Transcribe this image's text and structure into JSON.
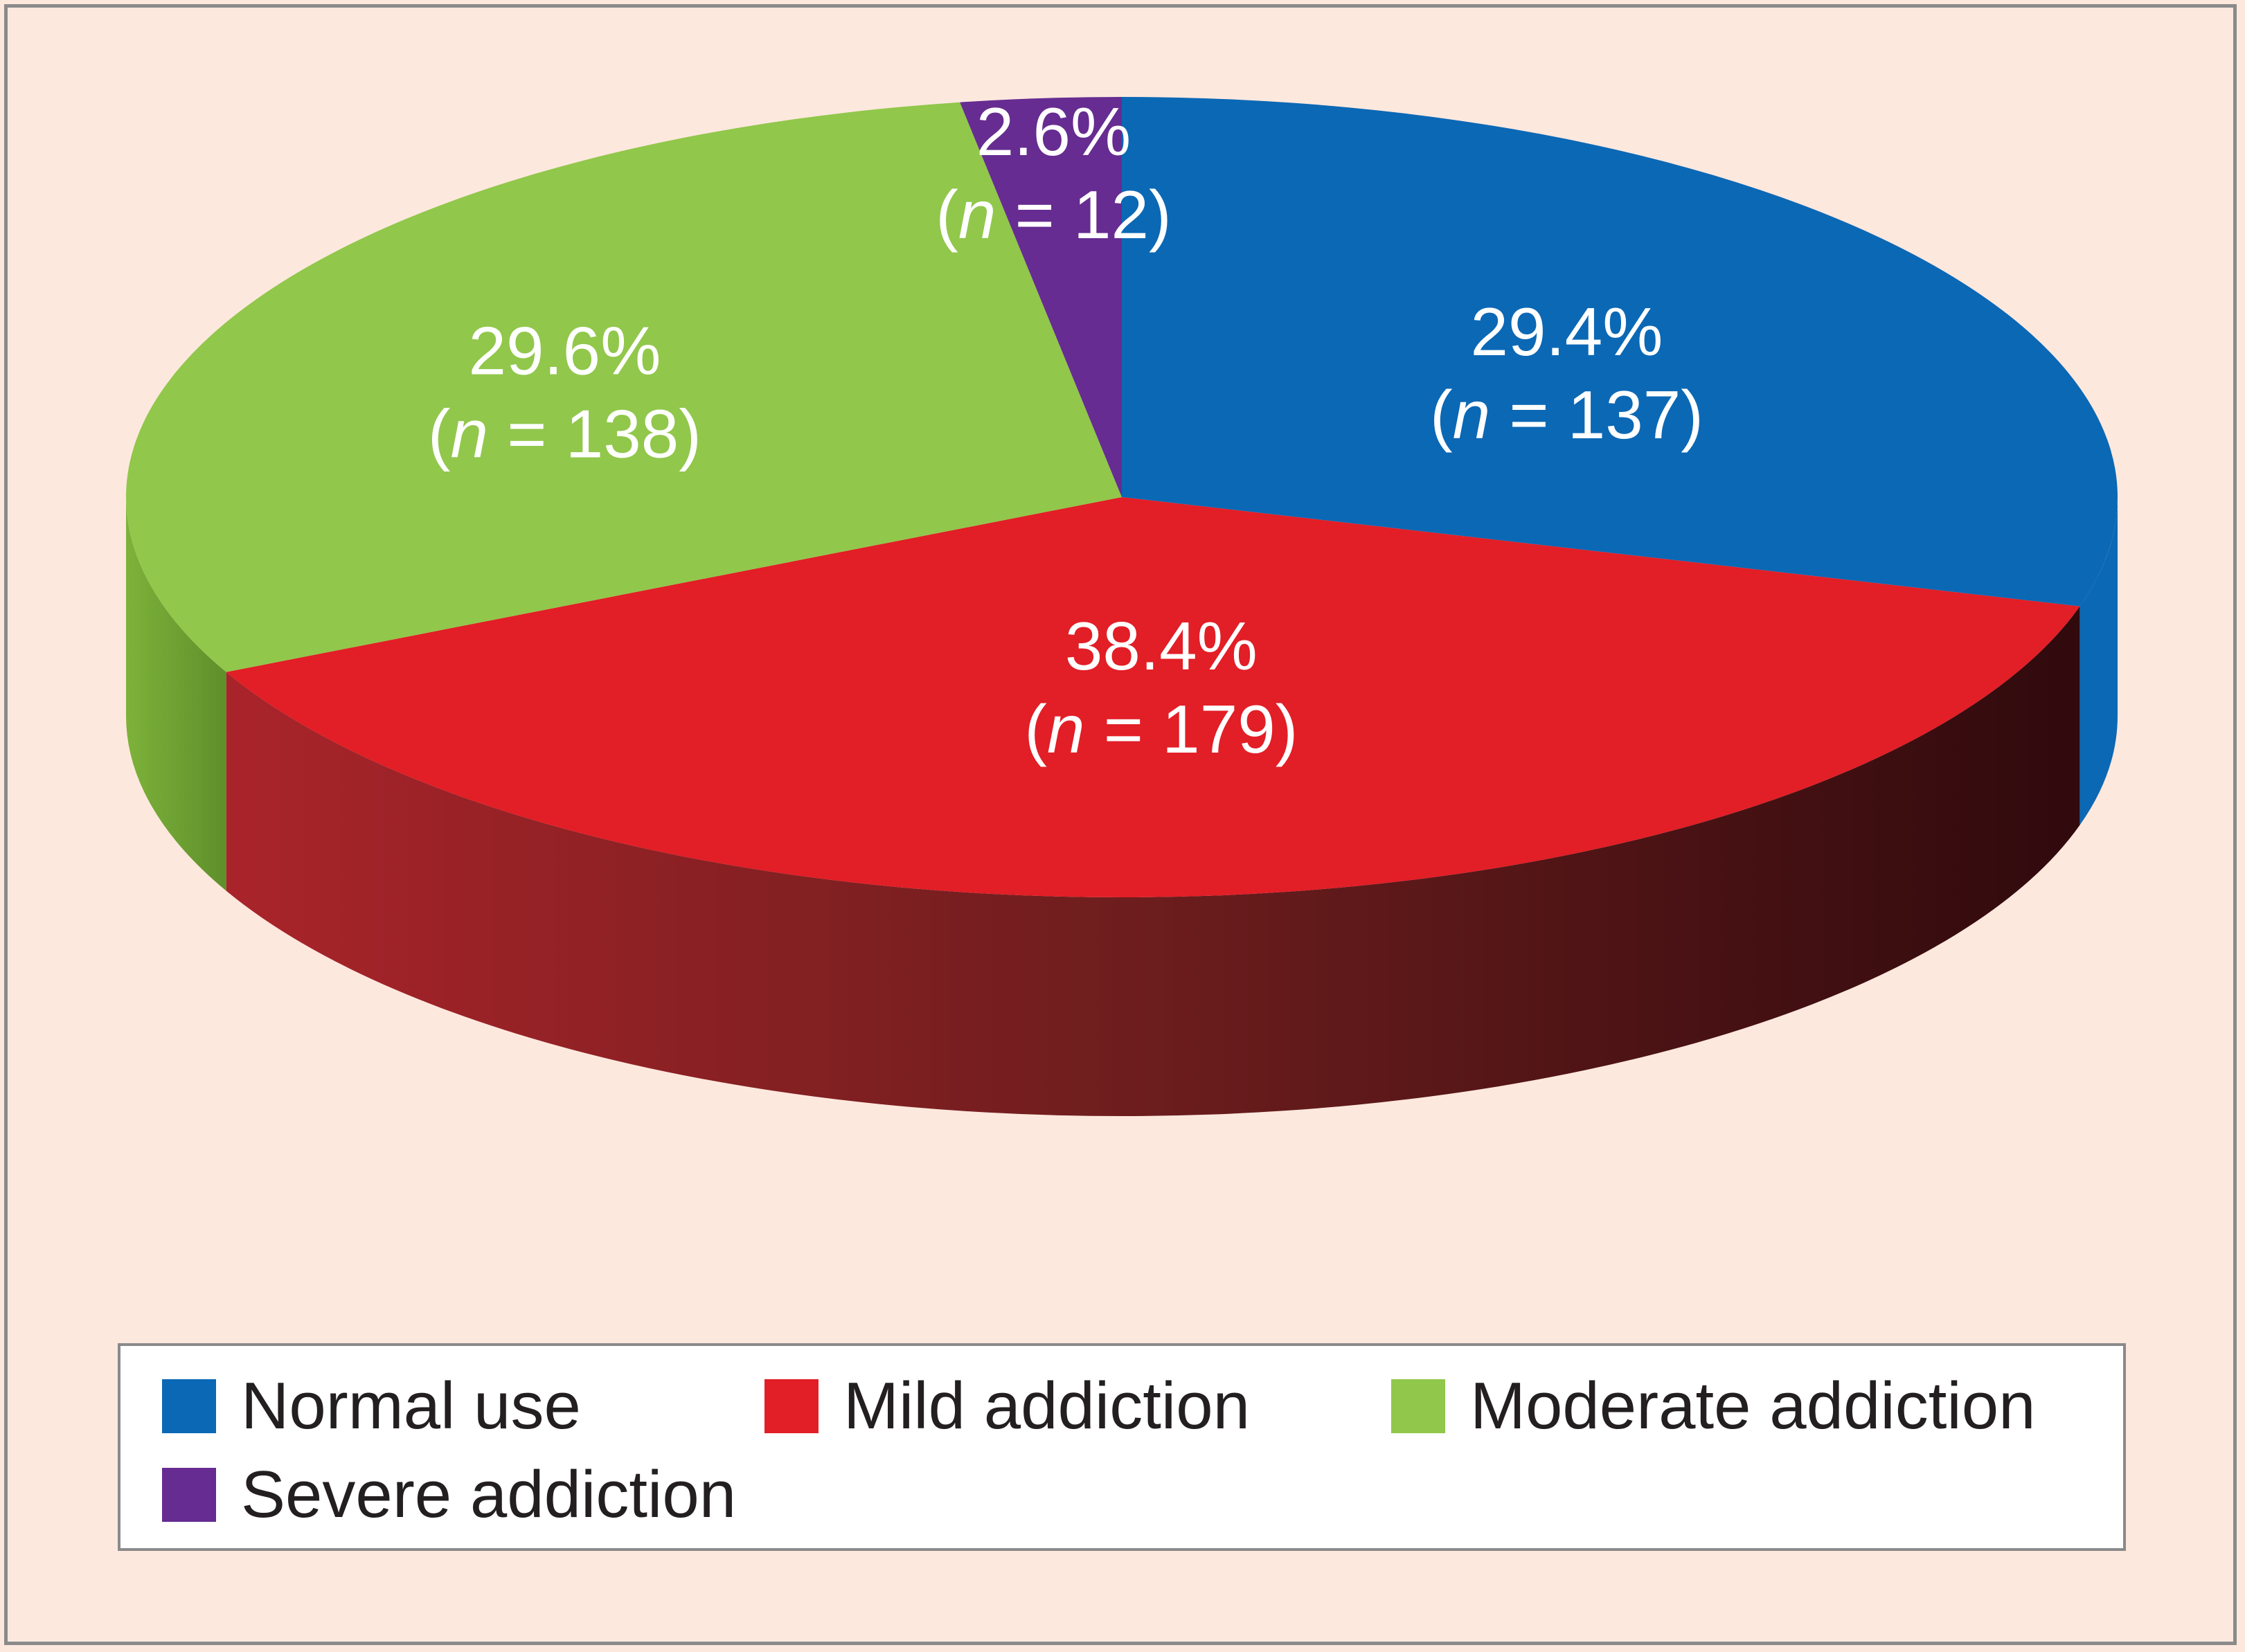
{
  "chart_data": {
    "type": "pie",
    "style": "3d",
    "slices": [
      {
        "name": "Normal use",
        "percent": 29.4,
        "count": 137,
        "label_pct": "29.4%",
        "label_n": "137",
        "color": "#0b68b5"
      },
      {
        "name": "Mild addiction",
        "percent": 38.4,
        "count": 179,
        "label_pct": "38.4%",
        "label_n": "179",
        "color": "#e21e26"
      },
      {
        "name": "Moderate addiction",
        "percent": 29.6,
        "count": 138,
        "label_pct": "29.6%",
        "label_n": "138",
        "color": "#91c74b"
      },
      {
        "name": "Severe addiction",
        "percent": 2.6,
        "count": 12,
        "label_pct": "2.6%",
        "label_n": "12",
        "color": "#662c91"
      }
    ],
    "label_prefix": "(",
    "label_var": "n",
    "label_eq": " = ",
    "label_suffix": ")",
    "legend_position": "bottom"
  },
  "legend": {
    "items": [
      {
        "label": "Normal use",
        "color": "#0b68b5"
      },
      {
        "label": "Mild addiction",
        "color": "#e21e26"
      },
      {
        "label": "Moderate addiction",
        "color": "#91c74b"
      },
      {
        "label": "Severe addiction",
        "color": "#662c91"
      }
    ]
  }
}
